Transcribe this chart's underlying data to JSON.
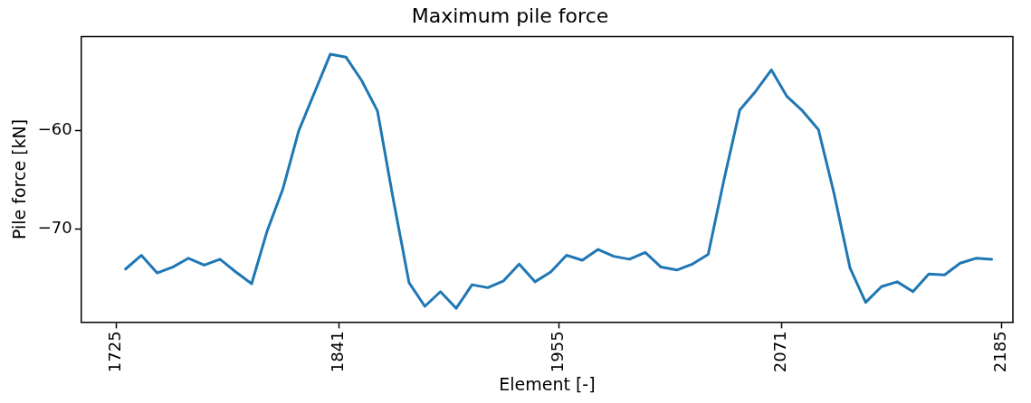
{
  "chart_data": {
    "type": "line",
    "title": "Maximum pile force",
    "xlabel": "Element [-]",
    "ylabel": "Pile force [kN]",
    "x": [
      1730,
      1738.2,
      1746.4,
      1754.5,
      1762.7,
      1770.9,
      1779.1,
      1787.3,
      1795.5,
      1803.6,
      1811.8,
      1820,
      1828.2,
      1836.4,
      1844.5,
      1852.7,
      1860.9,
      1869.1,
      1877.3,
      1885.5,
      1893.6,
      1901.8,
      1910,
      1918.2,
      1926.4,
      1934.5,
      1942.7,
      1950.9,
      1959.1,
      1967.3,
      1975.5,
      1983.6,
      1991.8,
      2000,
      2008.2,
      2016.4,
      2024.5,
      2032.7,
      2040.9,
      2049.1,
      2057.3,
      2065.5,
      2073.6,
      2081.8,
      2090,
      2098.2,
      2106.4,
      2114.5,
      2122.7,
      2130.9,
      2139.1,
      2147.3,
      2155.5,
      2163.6,
      2171.8,
      2180
    ],
    "series": [
      {
        "color": "#1f77b4",
        "values": [
          -74.1,
          -72.7,
          -74.5,
          -73.9,
          -73.0,
          -73.7,
          -73.1,
          -74.4,
          -75.6,
          -70.2,
          -65.9,
          -60.0,
          -56.1,
          -52.2,
          -52.5,
          -54.9,
          -58.0,
          -67.0,
          -75.5,
          -77.9,
          -76.4,
          -78.1,
          -75.7,
          -76.0,
          -75.3,
          -73.6,
          -75.4,
          -74.4,
          -72.7,
          -73.2,
          -72.1,
          -72.8,
          -73.1,
          -72.4,
          -73.9,
          -74.2,
          -73.6,
          -72.6,
          -65.0,
          -57.9,
          -56.0,
          -53.8,
          -56.5,
          -58.0,
          -59.9,
          -66.5,
          -74.0,
          -77.5,
          -75.9,
          -75.4,
          -76.4,
          -74.6,
          -74.7,
          -73.5,
          -73.0,
          -73.1
        ]
      }
    ],
    "xlim": [
      1707,
      2191
    ],
    "xticks": [
      1725,
      1841,
      1955,
      2071,
      2185
    ],
    "ylim": [
      -79.5,
      -50.4
    ],
    "yticks": [
      -70,
      -60
    ],
    "grid": false,
    "legend": false,
    "marker": "none",
    "line_style": "solid"
  }
}
